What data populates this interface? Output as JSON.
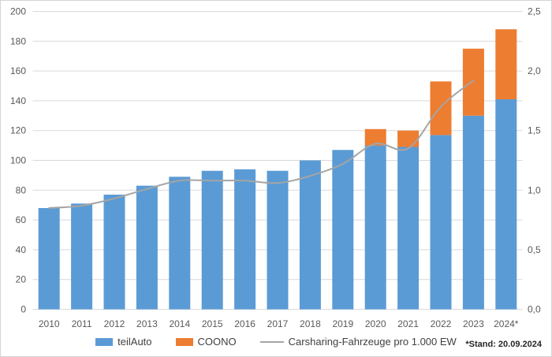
{
  "chart_data": {
    "type": "bar",
    "subtype": "stacked-bar-with-line",
    "categories": [
      "2010",
      "2011",
      "2012",
      "2013",
      "2014",
      "2015",
      "2016",
      "2017",
      "2018",
      "2019",
      "2020",
      "2021",
      "2022",
      "2023",
      "2024*"
    ],
    "series": [
      {
        "name": "teilAuto",
        "type": "bar",
        "axis": "left",
        "color": "#5b9bd5",
        "values": [
          68,
          71,
          77,
          83,
          89,
          93,
          94,
          93,
          100,
          107,
          110,
          109,
          117,
          130,
          141
        ]
      },
      {
        "name": "COONO",
        "type": "bar",
        "axis": "left",
        "color": "#ed7d31",
        "values": [
          0,
          0,
          0,
          0,
          0,
          0,
          0,
          0,
          0,
          0,
          11,
          11,
          36,
          45,
          47
        ]
      },
      {
        "name": "Carsharing-Fahrzeuge pro 1.000 EW",
        "type": "line",
        "axis": "right",
        "color": "#a5a5a5",
        "values": [
          0.85,
          0.87,
          0.93,
          1.01,
          1.08,
          1.08,
          1.08,
          1.06,
          1.12,
          1.22,
          1.39,
          1.35,
          1.7,
          1.92,
          null
        ]
      }
    ],
    "left_axis": {
      "min": 0,
      "max": 200,
      "step": 20,
      "tick_labels": [
        "0",
        "20",
        "40",
        "60",
        "80",
        "100",
        "120",
        "140",
        "160",
        "180",
        "200"
      ]
    },
    "right_axis": {
      "min": 0,
      "max": 2.5,
      "step": 0.5,
      "tick_labels": [
        "0,0",
        "0,5",
        "1,0",
        "1,5",
        "2,0",
        "2,5"
      ]
    },
    "grid": true,
    "legend_position": "bottom",
    "title": "",
    "xlabel": "",
    "ylabel": ""
  },
  "colors": {
    "teilauto_blue": "#5b9bd5",
    "coono_orange": "#ed7d31",
    "trend_gray": "#a5a5a5",
    "gridline": "#d9d9d9",
    "axis_text": "#595959"
  },
  "footnote": "*Stand: 20.09.2024"
}
